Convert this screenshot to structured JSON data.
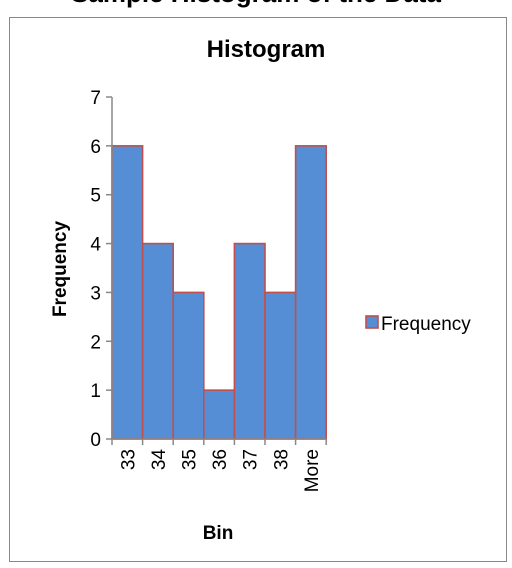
{
  "header_cut_text": "Sample Histogram of the Data",
  "chart_data": {
    "type": "bar",
    "title": "Histogram",
    "xlabel": "Bin",
    "ylabel": "Frequency",
    "categories": [
      "33",
      "34",
      "35",
      "36",
      "37",
      "38",
      "More"
    ],
    "series": [
      {
        "name": "Frequency",
        "values": [
          6,
          4,
          3,
          1,
          4,
          3,
          6
        ]
      }
    ],
    "ylim": [
      0,
      7
    ],
    "yticks": [
      0,
      1,
      2,
      3,
      4,
      5,
      6,
      7
    ],
    "grid": false,
    "legend": "right",
    "colors": {
      "bar_fill": "#558ED5",
      "bar_edge": "#C0504D",
      "axis": "#888888"
    }
  }
}
